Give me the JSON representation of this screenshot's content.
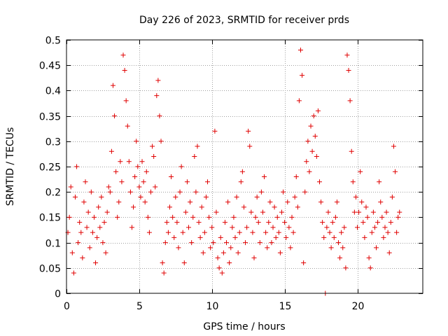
{
  "chart_data": {
    "type": "scatter",
    "title": "Day 226 of 2023, SRMTID for receiver prds",
    "xlabel": "GPS time / hours",
    "ylabel": "SRMTID / TECUs",
    "xlim": [
      0,
      24.5
    ],
    "ylim": [
      0,
      0.5
    ],
    "xticks": [
      0,
      5,
      10,
      15,
      20
    ],
    "xtick_labels": [
      "0",
      "5",
      "10",
      "15",
      "20"
    ],
    "yticks": [
      0,
      0.05,
      0.1,
      0.15,
      0.2,
      0.25,
      0.3,
      0.35,
      0.4,
      0.45,
      0.5
    ],
    "ytick_labels": [
      "0",
      "0.05",
      "0.1",
      "0.15",
      "0.2",
      "0.25",
      "0.3",
      "0.35",
      "0.4",
      "0.45",
      "0.5"
    ],
    "grid": true,
    "marker": "+",
    "color": "#e00000",
    "series": [
      {
        "name": "SRMTID",
        "points": [
          [
            0.1,
            0.12
          ],
          [
            0.2,
            0.15
          ],
          [
            0.3,
            0.21
          ],
          [
            0.4,
            0.08
          ],
          [
            0.5,
            0.04
          ],
          [
            0.6,
            0.19
          ],
          [
            0.7,
            0.25
          ],
          [
            0.8,
            0.1
          ],
          [
            0.9,
            0.14
          ],
          [
            1.0,
            0.12
          ],
          [
            1.1,
            0.07
          ],
          [
            1.2,
            0.18
          ],
          [
            1.3,
            0.22
          ],
          [
            1.4,
            0.13
          ],
          [
            1.5,
            0.16
          ],
          [
            1.6,
            0.09
          ],
          [
            1.7,
            0.2
          ],
          [
            1.8,
            0.12
          ],
          [
            1.9,
            0.15
          ],
          [
            2.0,
            0.06
          ],
          [
            2.1,
            0.11
          ],
          [
            2.2,
            0.17
          ],
          [
            2.3,
            0.13
          ],
          [
            2.4,
            0.19
          ],
          [
            2.5,
            0.1
          ],
          [
            2.6,
            0.14
          ],
          [
            2.7,
            0.08
          ],
          [
            2.8,
            0.16
          ],
          [
            2.9,
            0.21
          ],
          [
            3.0,
            0.2
          ],
          [
            3.1,
            0.28
          ],
          [
            3.2,
            0.41
          ],
          [
            3.3,
            0.35
          ],
          [
            3.4,
            0.24
          ],
          [
            3.5,
            0.15
          ],
          [
            3.6,
            0.18
          ],
          [
            3.7,
            0.26
          ],
          [
            3.8,
            0.22
          ],
          [
            3.9,
            0.47
          ],
          [
            4.0,
            0.44
          ],
          [
            4.1,
            0.38
          ],
          [
            4.2,
            0.33
          ],
          [
            4.3,
            0.26
          ],
          [
            4.4,
            0.2
          ],
          [
            4.5,
            0.13
          ],
          [
            4.6,
            0.17
          ],
          [
            4.7,
            0.23
          ],
          [
            4.8,
            0.3
          ],
          [
            4.9,
            0.25
          ],
          [
            5.0,
            0.21
          ],
          [
            5.1,
            0.19
          ],
          [
            5.2,
            0.26
          ],
          [
            5.3,
            0.22
          ],
          [
            5.4,
            0.18
          ],
          [
            5.5,
            0.24
          ],
          [
            5.6,
            0.15
          ],
          [
            5.7,
            0.12
          ],
          [
            5.8,
            0.2
          ],
          [
            5.9,
            0.29
          ],
          [
            6.0,
            0.27
          ],
          [
            6.1,
            0.21
          ],
          [
            6.2,
            0.39
          ],
          [
            6.3,
            0.42
          ],
          [
            6.4,
            0.35
          ],
          [
            6.5,
            0.3
          ],
          [
            6.6,
            0.06
          ],
          [
            6.7,
            0.04
          ],
          [
            6.8,
            0.1
          ],
          [
            6.9,
            0.14
          ],
          [
            7.0,
            0.12
          ],
          [
            7.1,
            0.17
          ],
          [
            7.2,
            0.23
          ],
          [
            7.3,
            0.15
          ],
          [
            7.4,
            0.11
          ],
          [
            7.5,
            0.19
          ],
          [
            7.6,
            0.14
          ],
          [
            7.7,
            0.09
          ],
          [
            7.8,
            0.2
          ],
          [
            7.9,
            0.25
          ],
          [
            8.0,
            0.12
          ],
          [
            8.1,
            0.06
          ],
          [
            8.2,
            0.16
          ],
          [
            8.3,
            0.22
          ],
          [
            8.4,
            0.13
          ],
          [
            8.5,
            0.18
          ],
          [
            8.6,
            0.1
          ],
          [
            8.7,
            0.15
          ],
          [
            8.8,
            0.27
          ],
          [
            8.9,
            0.2
          ],
          [
            9.0,
            0.29
          ],
          [
            9.1,
            0.14
          ],
          [
            9.2,
            0.11
          ],
          [
            9.3,
            0.17
          ],
          [
            9.4,
            0.08
          ],
          [
            9.5,
            0.12
          ],
          [
            9.6,
            0.19
          ],
          [
            9.7,
            0.22
          ],
          [
            9.8,
            0.15
          ],
          [
            9.9,
            0.09
          ],
          [
            10.0,
            0.13
          ],
          [
            10.1,
            0.1
          ],
          [
            10.2,
            0.32
          ],
          [
            10.3,
            0.16
          ],
          [
            10.4,
            0.07
          ],
          [
            10.5,
            0.05
          ],
          [
            10.6,
            0.11
          ],
          [
            10.7,
            0.04
          ],
          [
            10.8,
            0.08
          ],
          [
            10.9,
            0.14
          ],
          [
            11.0,
            0.1
          ],
          [
            11.1,
            0.18
          ],
          [
            11.2,
            0.06
          ],
          [
            11.3,
            0.09
          ],
          [
            11.4,
            0.13
          ],
          [
            11.5,
            0.15
          ],
          [
            11.6,
            0.11
          ],
          [
            11.7,
            0.19
          ],
          [
            11.8,
            0.08
          ],
          [
            11.9,
            0.12
          ],
          [
            12.0,
            0.22
          ],
          [
            12.1,
            0.24
          ],
          [
            12.2,
            0.17
          ],
          [
            12.3,
            0.1
          ],
          [
            12.4,
            0.13
          ],
          [
            12.5,
            0.32
          ],
          [
            12.6,
            0.29
          ],
          [
            12.7,
            0.16
          ],
          [
            12.8,
            0.12
          ],
          [
            12.9,
            0.07
          ],
          [
            13.0,
            0.15
          ],
          [
            13.1,
            0.19
          ],
          [
            13.2,
            0.14
          ],
          [
            13.3,
            0.1
          ],
          [
            13.4,
            0.2
          ],
          [
            13.5,
            0.16
          ],
          [
            13.6,
            0.23
          ],
          [
            13.7,
            0.12
          ],
          [
            13.8,
            0.09
          ],
          [
            13.9,
            0.14
          ],
          [
            14.0,
            0.18
          ],
          [
            14.1,
            0.1
          ],
          [
            14.2,
            0.13
          ],
          [
            14.3,
            0.17
          ],
          [
            14.4,
            0.11
          ],
          [
            14.5,
            0.15
          ],
          [
            14.6,
            0.12
          ],
          [
            14.7,
            0.08
          ],
          [
            14.8,
            0.16
          ],
          [
            14.9,
            0.2
          ],
          [
            15.0,
            0.14
          ],
          [
            15.1,
            0.11
          ],
          [
            15.2,
            0.18
          ],
          [
            15.3,
            0.13
          ],
          [
            15.4,
            0.09
          ],
          [
            15.5,
            0.15
          ],
          [
            15.6,
            0.12
          ],
          [
            15.7,
            0.19
          ],
          [
            15.8,
            0.23
          ],
          [
            15.9,
            0.17
          ],
          [
            16.0,
            0.38
          ],
          [
            16.1,
            0.48
          ],
          [
            16.2,
            0.43
          ],
          [
            16.3,
            0.06
          ],
          [
            16.4,
            0.2
          ],
          [
            16.5,
            0.26
          ],
          [
            16.6,
            0.3
          ],
          [
            16.7,
            0.24
          ],
          [
            16.8,
            0.33
          ],
          [
            16.9,
            0.28
          ],
          [
            17.0,
            0.35
          ],
          [
            17.1,
            0.31
          ],
          [
            17.2,
            0.27
          ],
          [
            17.3,
            0.36
          ],
          [
            17.4,
            0.22
          ],
          [
            17.5,
            0.18
          ],
          [
            17.6,
            0.14
          ],
          [
            17.7,
            0.11
          ],
          [
            17.8,
            0.0
          ],
          [
            17.9,
            0.13
          ],
          [
            18.0,
            0.16
          ],
          [
            18.1,
            0.12
          ],
          [
            18.2,
            0.09
          ],
          [
            18.3,
            0.14
          ],
          [
            18.4,
            0.11
          ],
          [
            18.5,
            0.15
          ],
          [
            18.6,
            0.18
          ],
          [
            18.7,
            0.1
          ],
          [
            18.8,
            0.07
          ],
          [
            18.9,
            0.12
          ],
          [
            19.0,
            0.09
          ],
          [
            19.1,
            0.13
          ],
          [
            19.2,
            0.05
          ],
          [
            19.3,
            0.47
          ],
          [
            19.4,
            0.44
          ],
          [
            19.5,
            0.38
          ],
          [
            19.6,
            0.28
          ],
          [
            19.7,
            0.22
          ],
          [
            19.8,
            0.16
          ],
          [
            19.9,
            0.19
          ],
          [
            20.0,
            0.13
          ],
          [
            20.1,
            0.16
          ],
          [
            20.2,
            0.24
          ],
          [
            20.3,
            0.18
          ],
          [
            20.4,
            0.14
          ],
          [
            20.5,
            0.11
          ],
          [
            20.6,
            0.17
          ],
          [
            20.7,
            0.15
          ],
          [
            20.8,
            0.07
          ],
          [
            20.9,
            0.05
          ],
          [
            21.0,
            0.12
          ],
          [
            21.1,
            0.16
          ],
          [
            21.2,
            0.13
          ],
          [
            21.3,
            0.09
          ],
          [
            21.4,
            0.14
          ],
          [
            21.5,
            0.22
          ],
          [
            21.6,
            0.18
          ],
          [
            21.7,
            0.15
          ],
          [
            21.8,
            0.11
          ],
          [
            21.9,
            0.13
          ],
          [
            22.0,
            0.16
          ],
          [
            22.1,
            0.12
          ],
          [
            22.2,
            0.08
          ],
          [
            22.3,
            0.14
          ],
          [
            22.4,
            0.19
          ],
          [
            22.5,
            0.29
          ],
          [
            22.6,
            0.24
          ],
          [
            22.7,
            0.12
          ],
          [
            22.8,
            0.15
          ],
          [
            22.9,
            0.16
          ]
        ]
      }
    ]
  }
}
